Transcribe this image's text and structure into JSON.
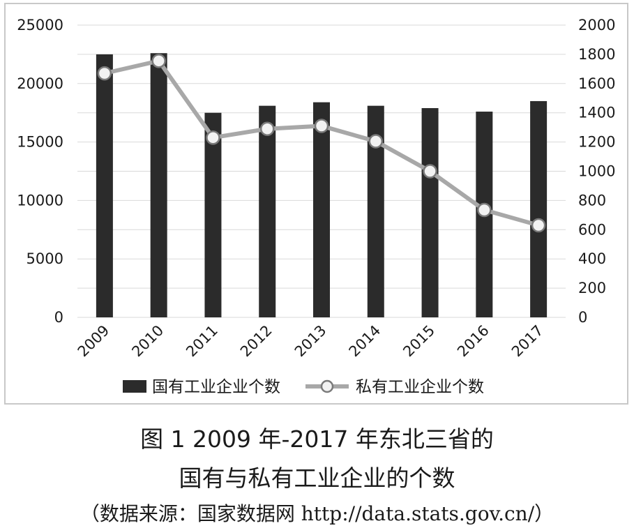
{
  "caption": {
    "line1": "图 1  2009 年-2017 年东北三省的",
    "line2": "国有与私有工业企业的个数",
    "source": "（数据来源：国家数据网 http://data.stats.gov.cn/）"
  },
  "chart_data": {
    "type": "bar",
    "categories": [
      "2009",
      "2010",
      "2011",
      "2012",
      "2013",
      "2014",
      "2015",
      "2016",
      "2017"
    ],
    "series": [
      {
        "name": "国有工业企业个数",
        "type": "bar",
        "axis": "left",
        "color": "#2b2b2b",
        "values": [
          22500,
          22600,
          17500,
          18100,
          18400,
          18100,
          17900,
          17600,
          18500
        ]
      },
      {
        "name": "私有工业企业个数",
        "type": "line",
        "axis": "right",
        "color": "#a8a8a8",
        "values": [
          1670,
          1755,
          1230,
          1290,
          1310,
          1205,
          1000,
          735,
          630
        ]
      }
    ],
    "y_left": {
      "min": 0,
      "max": 25000,
      "ticks": [
        "25000",
        "20000",
        "15000",
        "10000",
        "5000",
        "0"
      ]
    },
    "y_right": {
      "min": 0,
      "max": 2000,
      "ticks": [
        "2000",
        "1800",
        "1600",
        "1400",
        "1200",
        "1000",
        "800",
        "600",
        "400",
        "200",
        "0"
      ]
    },
    "grid": true,
    "legend_position": "bottom"
  }
}
